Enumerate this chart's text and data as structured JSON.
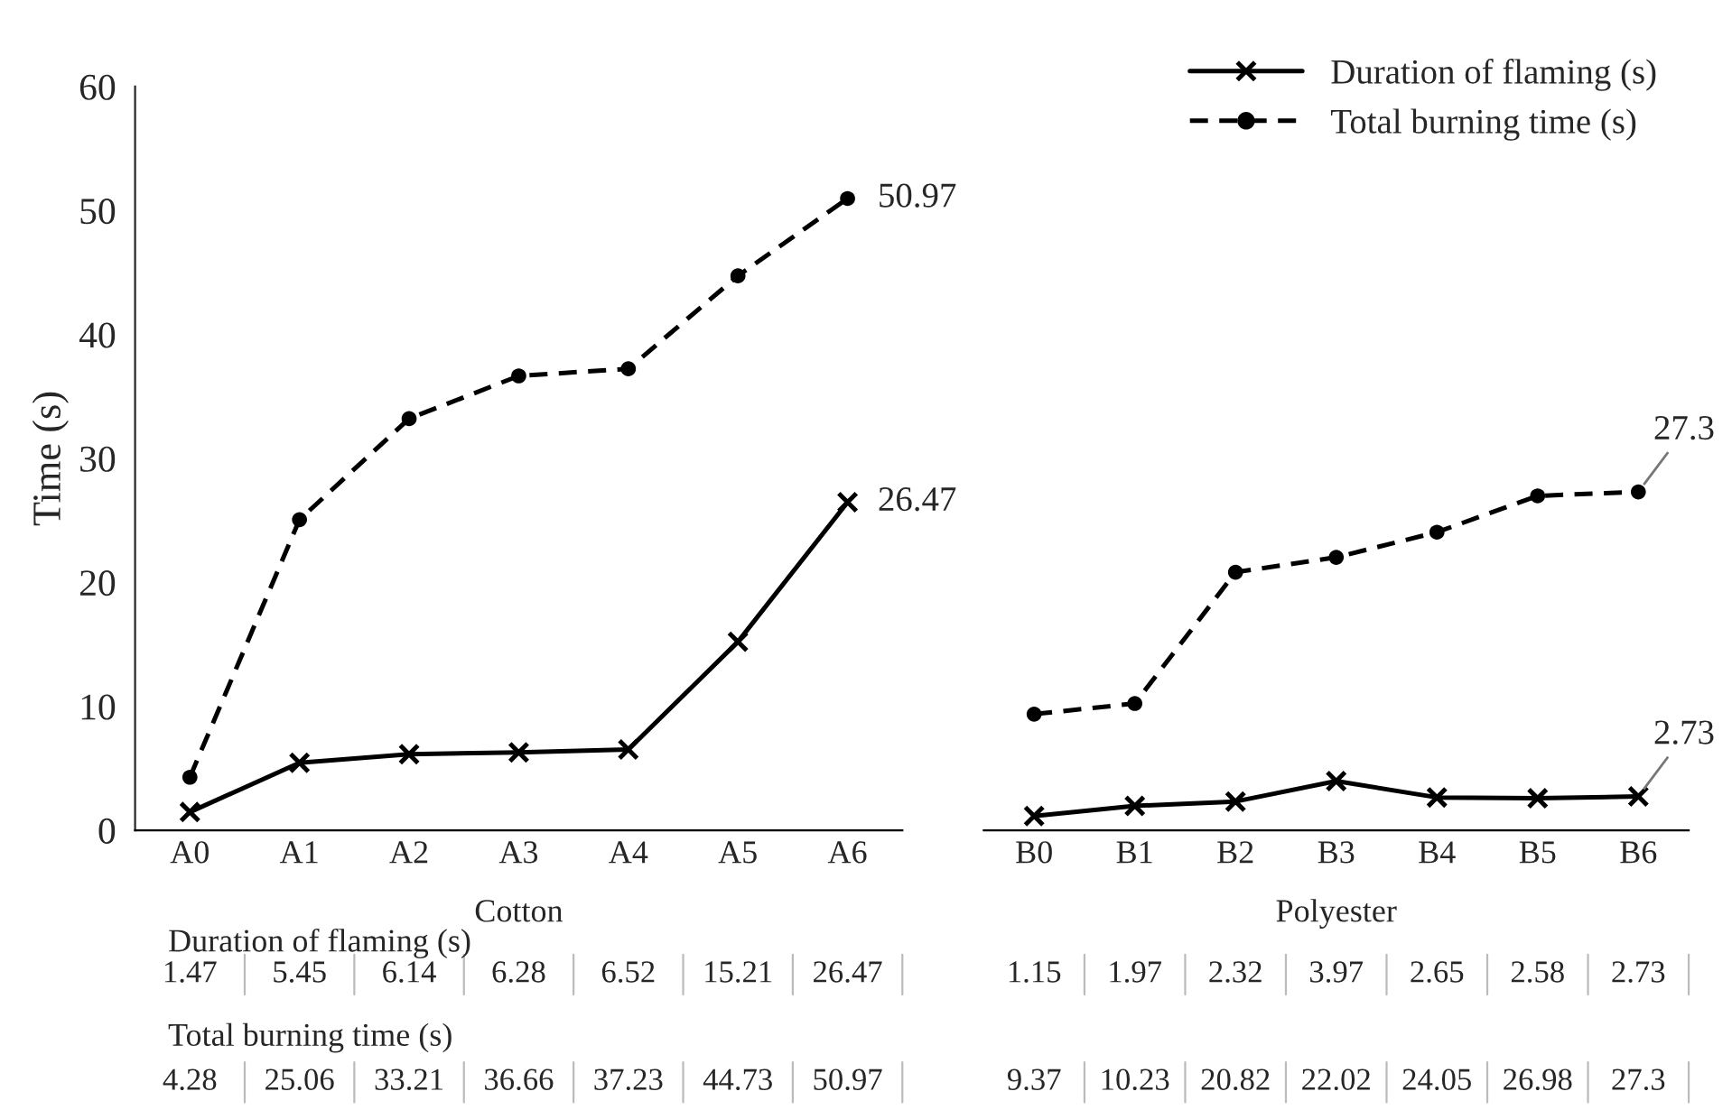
{
  "chart_data": [
    {
      "type": "line",
      "categories": [
        "A0",
        "A1",
        "A2",
        "A3",
        "A4",
        "A5",
        "A6"
      ],
      "xlabel": "Cotton",
      "ylabel": "Time (s)",
      "ylim": [
        0,
        60
      ],
      "yticks": [
        0,
        10,
        20,
        30,
        40,
        50,
        60
      ],
      "grid": false,
      "legend": false,
      "data_labels": true,
      "series": [
        {
          "color": "#000000",
          "marker": "cross",
          "line_style": "solid",
          "values": [
            1.47,
            5.45,
            6.14,
            6.28,
            6.52,
            15.21,
            26.47
          ]
        },
        {
          "color": "#000000",
          "marker": "circle",
          "line_style": "dashed",
          "values": [
            4.28,
            25.06,
            33.21,
            36.66,
            37.23,
            44.73,
            50.97
          ]
        }
      ],
      "annotations": [
        {
          "text": "26.47",
          "x": "A6",
          "y": 26.47
        },
        {
          "text": "50.97",
          "x": "A6",
          "y": 50.97
        },
        "Duration of flaming (s)",
        "Total burning time (s)"
      ]
    },
    {
      "type": "line",
      "categories": [
        "B0",
        "B1",
        "B2",
        "B3",
        "B4",
        "B5",
        "B6"
      ],
      "xlabel": "Polyester",
      "ylim": [
        0,
        60
      ],
      "tick_labels": "x",
      "grid": false,
      "legend": "top right",
      "data_labels": true,
      "series": [
        {
          "name": "Duration of flaming (s)",
          "color": "#000000",
          "marker": "cross",
          "line_style": "solid",
          "values": [
            1.15,
            1.97,
            2.32,
            3.97,
            2.65,
            2.58,
            2.73
          ]
        },
        {
          "name": "Total burning time (s)",
          "color": "#000000",
          "marker": "circle",
          "line_style": "dashed",
          "values": [
            9.37,
            10.23,
            20.82,
            22.02,
            24.05,
            26.98,
            27.3
          ]
        }
      ],
      "annotations": [
        {
          "text": "2.73",
          "x": "B6",
          "y": 2.73
        },
        {
          "text": "27.3",
          "x": "B6",
          "y": 27.3
        }
      ]
    }
  ]
}
